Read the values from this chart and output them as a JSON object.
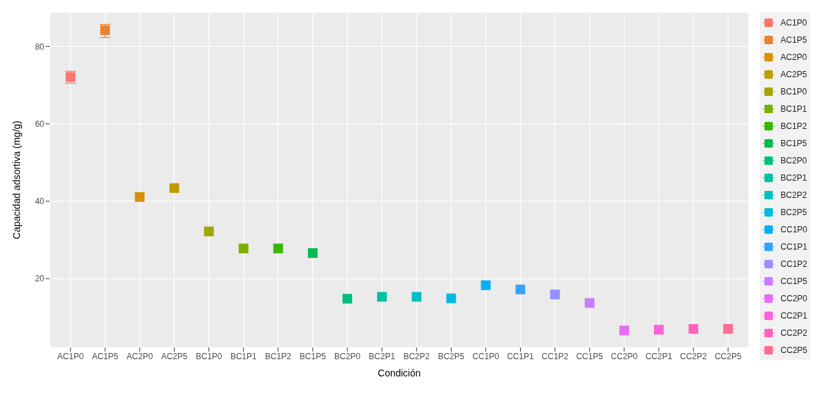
{
  "chart_data": {
    "type": "scatter",
    "xlabel": "Condición",
    "ylabel": "Capacidad adsortiva (mg/g)",
    "categories": [
      "AC1P0",
      "AC1P5",
      "AC2P0",
      "AC2P5",
      "BC1P0",
      "BC1P1",
      "BC1P2",
      "BC1P5",
      "BC2P0",
      "BC2P1",
      "BC2P2",
      "BC2P5",
      "CC1P0",
      "CC1P1",
      "CC1P2",
      "CC1P5",
      "CC2P0",
      "CC2P1",
      "CC2P2",
      "CC2P5"
    ],
    "ylim": [
      2.2,
      88.8
    ],
    "yticks": [
      20,
      40,
      60,
      80
    ],
    "grid": true,
    "legend": "right",
    "marker": "square",
    "series": [
      {
        "name": "AC1P0",
        "color": "#f8766d",
        "x": [
          "AC1P0"
        ],
        "values": [
          72.1
        ],
        "errors": [
          [
            70.5,
            73.6
          ]
        ]
      },
      {
        "name": "AC1P5",
        "color": "#ea8331",
        "x": [
          "AC1P5"
        ],
        "values": [
          84.2
        ],
        "errors": [
          [
            82.3,
            85.7
          ]
        ]
      },
      {
        "name": "AC2P0",
        "color": "#d89000",
        "x": [
          "AC2P0"
        ],
        "values": [
          41.1
        ]
      },
      {
        "name": "AC2P5",
        "color": "#c09b00",
        "x": [
          "AC2P5"
        ],
        "values": [
          43.4
        ]
      },
      {
        "name": "BC1P0",
        "color": "#a3a500",
        "x": [
          "BC1P0"
        ],
        "values": [
          32.2
        ]
      },
      {
        "name": "BC1P1",
        "color": "#7cae00",
        "x": [
          "BC1P1"
        ],
        "values": [
          27.8
        ]
      },
      {
        "name": "BC1P2",
        "color": "#39b600",
        "x": [
          "BC1P2"
        ],
        "values": [
          27.8
        ]
      },
      {
        "name": "BC1P5",
        "color": "#00bb4e",
        "x": [
          "BC1P5"
        ],
        "values": [
          26.6
        ]
      },
      {
        "name": "BC2P0",
        "color": "#00bf7d",
        "x": [
          "BC2P0"
        ],
        "values": [
          14.8
        ]
      },
      {
        "name": "BC2P1",
        "color": "#00c1a3",
        "x": [
          "BC2P1"
        ],
        "values": [
          15.3
        ]
      },
      {
        "name": "BC2P2",
        "color": "#00bfc4",
        "x": [
          "BC2P2"
        ],
        "values": [
          15.3
        ]
      },
      {
        "name": "BC2P5",
        "color": "#00bae0",
        "x": [
          "BC2P5"
        ],
        "values": [
          14.9
        ]
      },
      {
        "name": "CC1P0",
        "color": "#00b0f6",
        "x": [
          "CC1P0"
        ],
        "values": [
          18.3
        ]
      },
      {
        "name": "CC1P1",
        "color": "#35a2ff",
        "x": [
          "CC1P1"
        ],
        "values": [
          17.2
        ]
      },
      {
        "name": "CC1P2",
        "color": "#9590ff",
        "x": [
          "CC1P2"
        ],
        "values": [
          15.9
        ]
      },
      {
        "name": "CC1P5",
        "color": "#c77cff",
        "x": [
          "CC1P5"
        ],
        "values": [
          13.7
        ]
      },
      {
        "name": "CC2P0",
        "color": "#e76bf3",
        "x": [
          "CC2P0"
        ],
        "values": [
          6.6
        ]
      },
      {
        "name": "CC2P1",
        "color": "#fa62db",
        "x": [
          "CC2P1"
        ],
        "values": [
          6.8
        ]
      },
      {
        "name": "CC2P2",
        "color": "#ff62bc",
        "x": [
          "CC2P2"
        ],
        "values": [
          7.0
        ]
      },
      {
        "name": "CC2P5",
        "color": "#ff6c91",
        "x": [
          "CC2P5"
        ],
        "values": [
          7.0
        ]
      }
    ]
  }
}
